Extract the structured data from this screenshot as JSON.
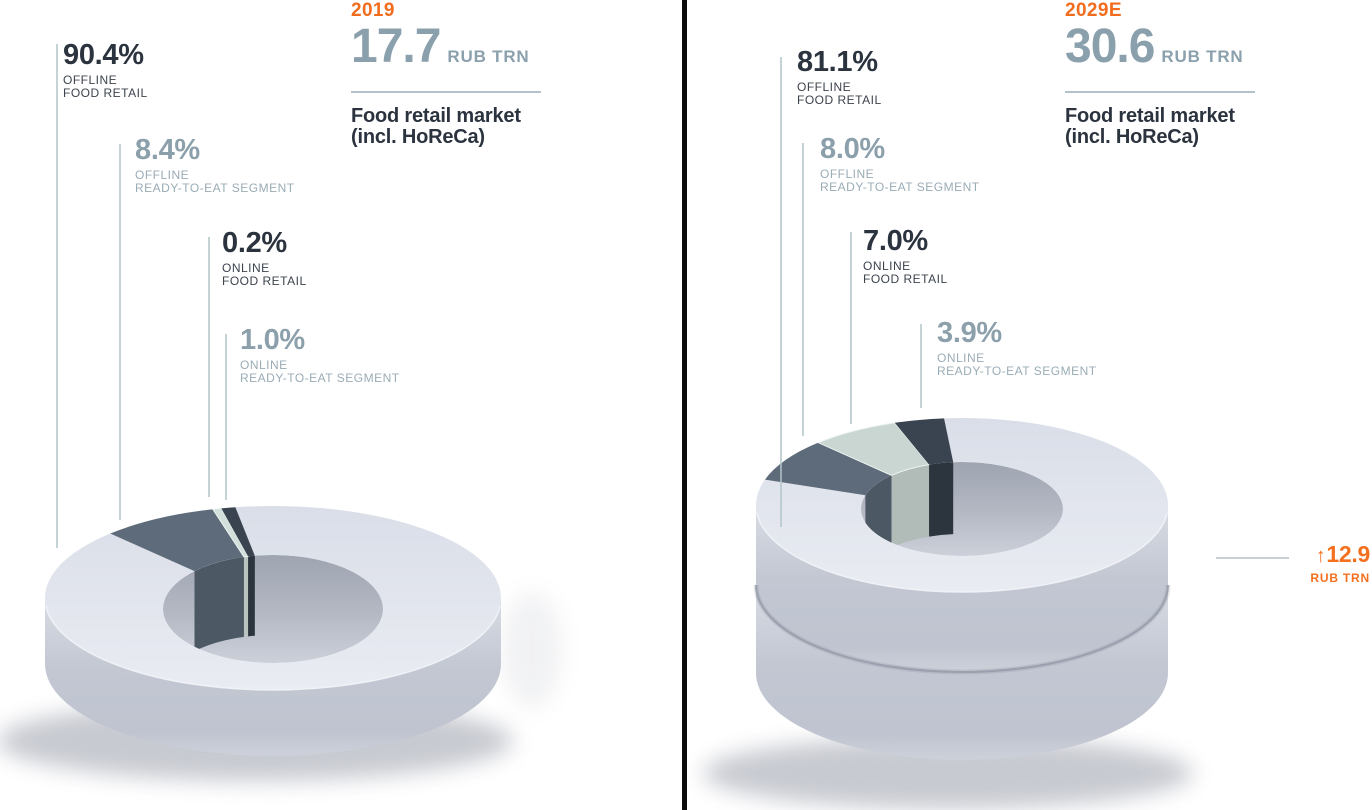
{
  "palette": {
    "accent_orange": "#f26c1e",
    "dark_text": "#2b333f",
    "muted_text": "#8ca0ac",
    "leader_line": "#b2c5c9",
    "divider": "#0b0b0b",
    "rule": "#b3c2ca"
  },
  "panels": [
    {
      "year": "2019",
      "amount": "17.7",
      "amount_unit": "RUB TRN",
      "title_line1": "Food retail market",
      "title_line2": "(incl. HoReCa)",
      "labels": [
        {
          "value": "90.4%",
          "caption_lines": [
            "OFFLINE",
            "FOOD RETAIL"
          ]
        },
        {
          "value": "8.4%",
          "caption_lines": [
            "OFFLINE",
            "READY-TO-EAT SEGMENT"
          ]
        },
        {
          "value": "0.2%",
          "caption_lines": [
            "ONLINE",
            "FOOD RETAIL"
          ]
        },
        {
          "value": "1.0%",
          "caption_lines": [
            "ONLINE",
            "READY-TO-EAT SEGMENT"
          ]
        }
      ]
    },
    {
      "year": "2029E",
      "amount": "30.6",
      "amount_unit": "RUB TRN",
      "title_line1": "Food retail market",
      "title_line2": "(incl. HoReCa)",
      "labels": [
        {
          "value": "81.1%",
          "caption_lines": [
            "OFFLINE",
            "FOOD RETAIL"
          ]
        },
        {
          "value": "8.0%",
          "caption_lines": [
            "OFFLINE",
            "READY-TO-EAT SEGMENT"
          ]
        },
        {
          "value": "7.0%",
          "caption_lines": [
            "ONLINE",
            "FOOD RETAIL"
          ]
        },
        {
          "value": "3.9%",
          "caption_lines": [
            "ONLINE",
            "READY-TO-EAT SEGMENT"
          ]
        }
      ],
      "annotation": {
        "arrow": "↑",
        "value": "12.9",
        "unit": "RUB TRN"
      }
    }
  ],
  "chart_data": [
    {
      "type": "pie",
      "variant": "3d-donut",
      "year": "2019",
      "total_value": 17.7,
      "total_unit": "RUB TRN",
      "title": "Food retail market (incl. HoReCa)",
      "segments": [
        {
          "label": "OFFLINE FOOD RETAIL",
          "pct": 90.4,
          "color": "#dfe3ec"
        },
        {
          "label": "OFFLINE READY-TO-EAT SEGMENT",
          "pct": 8.4,
          "color": "#5d6b7a"
        },
        {
          "label": "ONLINE FOOD RETAIL",
          "pct": 0.2,
          "color": "#d2dfda"
        },
        {
          "label": "ONLINE READY-TO-EAT SEGMENT",
          "pct": 1.0,
          "color": "#3a4450"
        }
      ]
    },
    {
      "type": "pie",
      "variant": "3d-donut-two-tier",
      "year": "2029E",
      "total_value": 30.6,
      "total_unit": "RUB TRN",
      "title": "Food retail market (incl. HoReCa)",
      "growth_annotation": "↑12.9 RUB TRN",
      "segments": [
        {
          "label": "OFFLINE FOOD RETAIL",
          "pct": 81.1,
          "color": "#dfe3ec"
        },
        {
          "label": "OFFLINE READY-TO-EAT SEGMENT",
          "pct": 8.0,
          "color": "#5d6b7a"
        },
        {
          "label": "ONLINE FOOD RETAIL",
          "pct": 7.0,
          "color": "#c9d6d1"
        },
        {
          "label": "ONLINE READY-TO-EAT SEGMENT",
          "pct": 3.9,
          "color": "#3a4450"
        }
      ]
    }
  ]
}
